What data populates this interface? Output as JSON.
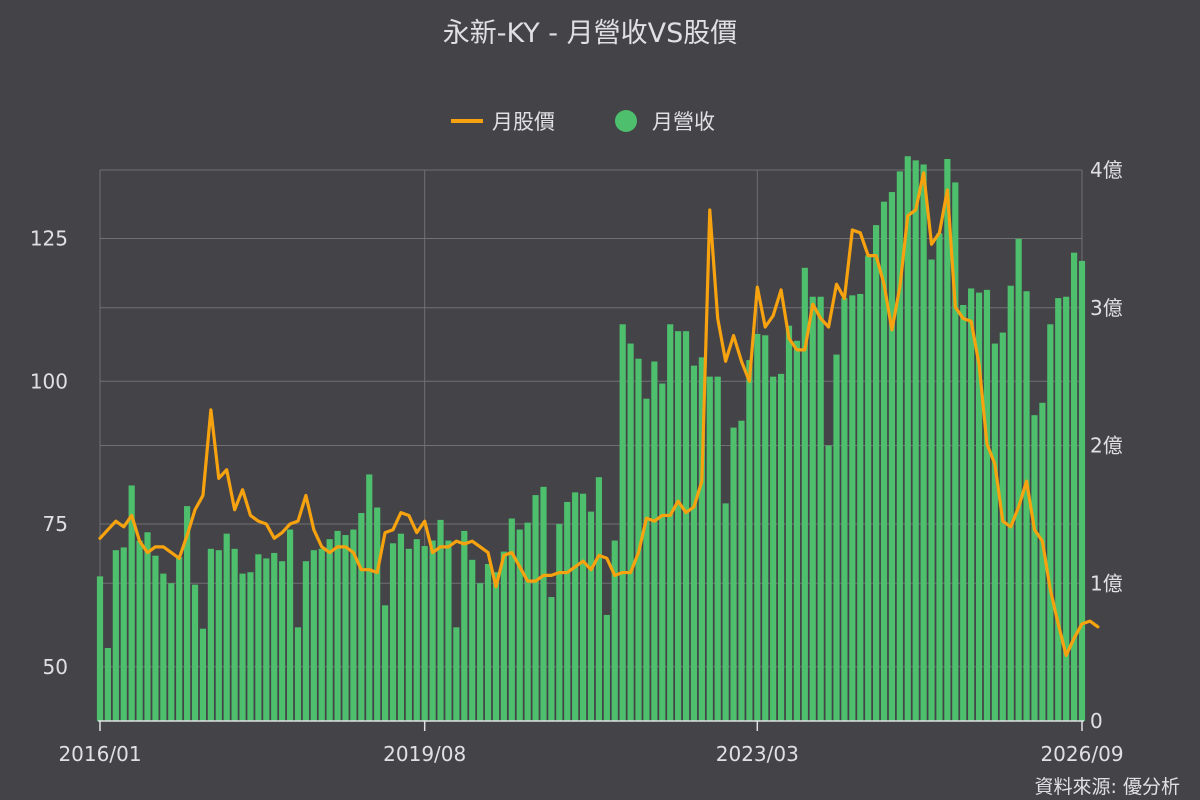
{
  "chart_data": {
    "type": "bar+line",
    "title": "永新-KY - 月營收VS股價",
    "source": "資料來源: 優分析",
    "legend": {
      "placement": "top-center",
      "items": [
        {
          "name": "月股價",
          "type": "line",
          "color": "#f7a20f"
        },
        {
          "name": "月營收",
          "type": "bar",
          "color": "#4dbf6d"
        }
      ]
    },
    "x_tick_labels": [
      "2016/01",
      "2019/08",
      "2023/03",
      "2026/09"
    ],
    "x_start": "2016/01",
    "x_end": "2026/09",
    "left_axis": {
      "ticks": [
        50,
        75,
        100,
        125
      ],
      "range": [
        40.5,
        137
      ]
    },
    "right_axis": {
      "ticks": [
        "0",
        "1億",
        "2億",
        "3億",
        "4億"
      ],
      "range": [
        0,
        4.0
      ],
      "unit": "億"
    },
    "grid": true,
    "colors": {
      "background": "#444347",
      "grid": "#707073",
      "bar": "#4dbf6d",
      "line": "#f7a20f",
      "text": "#e0e0e3"
    },
    "series": [
      {
        "name": "月營收",
        "axis": "right",
        "unit": "億",
        "values": [
          1.05,
          0.53,
          1.24,
          1.26,
          1.71,
          1.31,
          1.37,
          1.2,
          1.07,
          1.0,
          1.19,
          1.56,
          0.99,
          0.67,
          1.25,
          1.24,
          1.36,
          1.25,
          1.07,
          1.08,
          1.21,
          1.18,
          1.22,
          1.16,
          1.39,
          0.68,
          1.16,
          1.24,
          1.25,
          1.32,
          1.38,
          1.35,
          1.39,
          1.51,
          1.79,
          1.55,
          0.84,
          1.29,
          1.36,
          1.25,
          1.32,
          1.27,
          1.31,
          1.46,
          1.31,
          0.68,
          1.38,
          1.17,
          1.0,
          1.14,
          1.08,
          1.23,
          1.47,
          1.39,
          1.44,
          1.64,
          1.7,
          0.9,
          1.43,
          1.59,
          1.66,
          1.65,
          1.52,
          1.77,
          0.77,
          1.31,
          2.88,
          2.74,
          2.63,
          2.34,
          2.61,
          2.45,
          2.88,
          2.83,
          2.83,
          2.58,
          2.64,
          2.5,
          2.5,
          1.58,
          2.13,
          2.18,
          2.62,
          2.81,
          2.8,
          2.5,
          2.52,
          2.87,
          2.76,
          3.29,
          3.08,
          3.08,
          2.0,
          2.66,
          3.07,
          3.09,
          3.1,
          3.38,
          3.6,
          3.77,
          3.84,
          3.99,
          4.1,
          4.07,
          4.04,
          3.35,
          3.54,
          4.08,
          3.91,
          3.02,
          3.14,
          3.11,
          3.13,
          2.74,
          2.82,
          3.16,
          3.5,
          3.12,
          2.22,
          2.31,
          2.88,
          3.07,
          3.08,
          3.4,
          3.34
        ]
      },
      {
        "name": "月股價",
        "axis": "left",
        "values": [
          72.5,
          74,
          75.5,
          74.5,
          76.5,
          72,
          70,
          71,
          71,
          70,
          69,
          73,
          77.5,
          80,
          95,
          83,
          84.5,
          77.5,
          81,
          76.5,
          75.5,
          75,
          72.5,
          73.5,
          75,
          75.5,
          80,
          74,
          71,
          70,
          71,
          71,
          70,
          67,
          67,
          66.5,
          73.5,
          74,
          77,
          76.5,
          73.5,
          75.5,
          70,
          71,
          71,
          72,
          71.5,
          72,
          71,
          70,
          64,
          69.5,
          70,
          67.5,
          65,
          65,
          66,
          66,
          66.5,
          66.5,
          67.5,
          68.5,
          67,
          69.5,
          69,
          66,
          66.5,
          66.5,
          70,
          76,
          75.5,
          76.5,
          76.5,
          79,
          77,
          78,
          82.5,
          130,
          111,
          103.5,
          108,
          103.5,
          100,
          116.5,
          109.5,
          111.5,
          116,
          107.5,
          105.5,
          105.5,
          113.5,
          111,
          109.5,
          117,
          114.5,
          126.5,
          126,
          122,
          122,
          117,
          109,
          116.5,
          129,
          130,
          136.5,
          124,
          126,
          133.5,
          113,
          111,
          110.5,
          103,
          89,
          85.5,
          75.5,
          74.5,
          78,
          82.5,
          74,
          72,
          63.5,
          57.5,
          52,
          55,
          57.5,
          58,
          57
        ]
      }
    ]
  }
}
